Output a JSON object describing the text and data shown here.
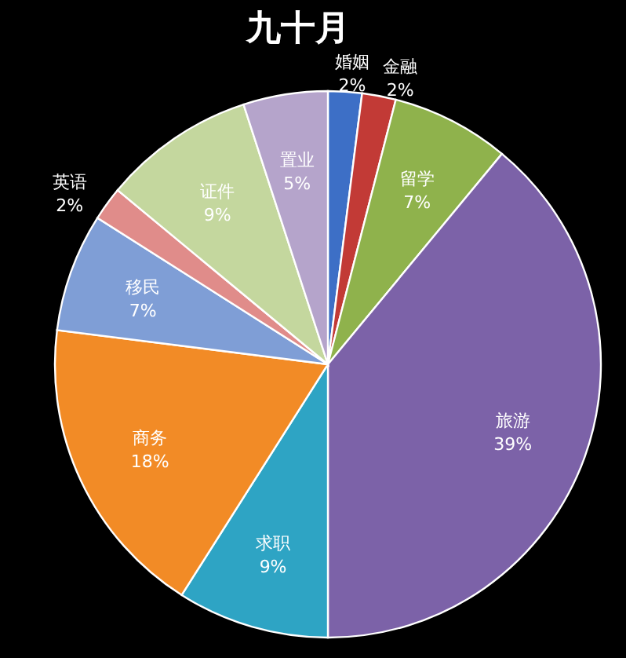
{
  "chart_data": {
    "type": "pie",
    "title": "九十月",
    "categories": [
      "婚姻",
      "金融",
      "留学",
      "旅游",
      "求职",
      "商务",
      "移民",
      "英语",
      "证件",
      "置业"
    ],
    "values": [
      2,
      2,
      7,
      39,
      9,
      18,
      7,
      2,
      9,
      5
    ],
    "value_labels": [
      "2%",
      "2%",
      "7%",
      "39%",
      "9%",
      "18%",
      "7%",
      "2%",
      "9%",
      "5%"
    ],
    "colors": [
      "#3d6fc6",
      "#c23a36",
      "#8fb24c",
      "#7c62a8",
      "#2ea4c4",
      "#f28b26",
      "#7f9ed6",
      "#e08c8a",
      "#c4d79e",
      "#b5a4cb"
    ]
  }
}
